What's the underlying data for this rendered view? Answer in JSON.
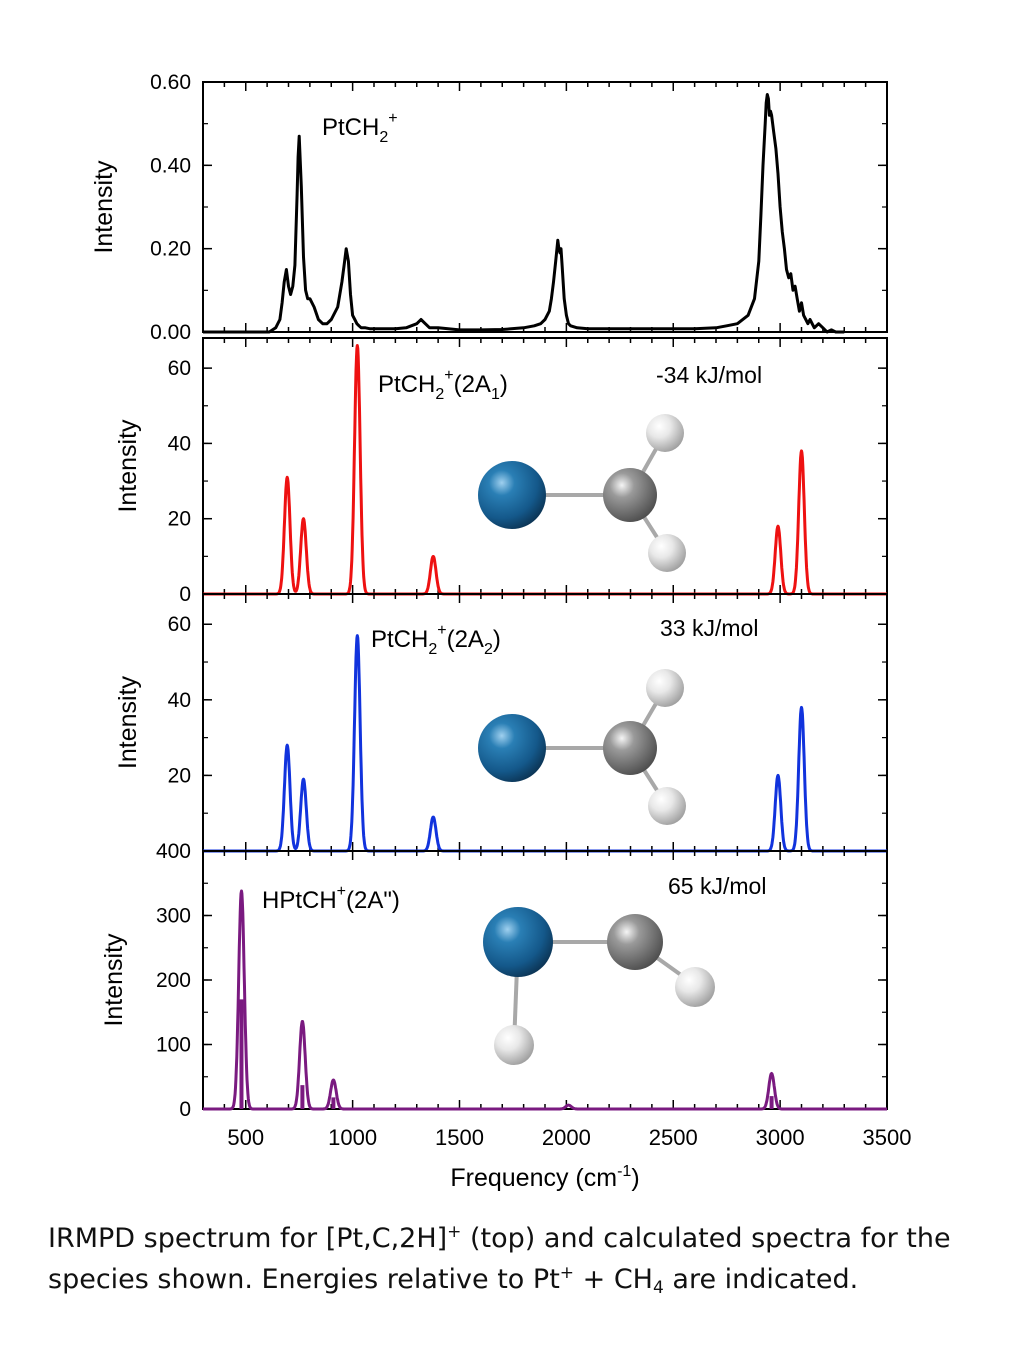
{
  "chart_data": {
    "type": "line",
    "xlabel_base": "Frequency (cm",
    "xlabel_sup": "-1",
    "xlabel_close": ")",
    "xlim": [
      300,
      3500
    ],
    "xticks": [
      "500",
      "1000",
      "1500",
      "2000",
      "2500",
      "3000",
      "3500"
    ],
    "panels": [
      {
        "id": "exp",
        "ylabel": "Intensity",
        "color": "#000000",
        "ylim": [
          0,
          0.6
        ],
        "yticks": [
          "0.00",
          "0.20",
          "0.40",
          "0.60"
        ],
        "label_main": "PtCH",
        "label_sub": "2",
        "label_sup": "+",
        "label_state": "",
        "label_state_sub": "",
        "label_close": "",
        "energy": "",
        "series": {
          "name": "IRMPD spectrum",
          "x": [
            300,
            610,
            640,
            660,
            670,
            680,
            690,
            700,
            710,
            720,
            730,
            740,
            745,
            750,
            760,
            770,
            780,
            790,
            800,
            820,
            840,
            860,
            880,
            900,
            930,
            950,
            960,
            970,
            980,
            990,
            1000,
            1010,
            1020,
            1030,
            1040,
            1060,
            1080,
            1100,
            1150,
            1200,
            1250,
            1300,
            1320,
            1340,
            1360,
            1400,
            1500,
            1600,
            1700,
            1800,
            1850,
            1880,
            1900,
            1920,
            1930,
            1940,
            1950,
            1960,
            1965,
            1970,
            1975,
            1980,
            1990,
            2000,
            2010,
            2020,
            2050,
            2100,
            2200,
            2300,
            2400,
            2500,
            2600,
            2700,
            2750,
            2800,
            2850,
            2880,
            2900,
            2910,
            2920,
            2930,
            2935,
            2940,
            2945,
            2950,
            2955,
            2960,
            2970,
            2980,
            2990,
            3000,
            3010,
            3020,
            3030,
            3040,
            3050,
            3060,
            3070,
            3080,
            3090,
            3100,
            3110,
            3120,
            3130,
            3140,
            3160,
            3180,
            3200,
            3220,
            3240,
            3260,
            3280,
            3300
          ],
          "y": [
            0.0,
            0.0,
            0.01,
            0.03,
            0.07,
            0.12,
            0.15,
            0.11,
            0.09,
            0.11,
            0.16,
            0.33,
            0.42,
            0.47,
            0.35,
            0.18,
            0.1,
            0.08,
            0.08,
            0.06,
            0.03,
            0.02,
            0.02,
            0.03,
            0.06,
            0.12,
            0.16,
            0.2,
            0.17,
            0.09,
            0.04,
            0.03,
            0.02,
            0.015,
            0.01,
            0.01,
            0.008,
            0.008,
            0.008,
            0.008,
            0.01,
            0.02,
            0.03,
            0.02,
            0.01,
            0.01,
            0.005,
            0.005,
            0.006,
            0.01,
            0.015,
            0.02,
            0.03,
            0.05,
            0.08,
            0.12,
            0.17,
            0.22,
            0.2,
            0.19,
            0.2,
            0.16,
            0.08,
            0.04,
            0.02,
            0.015,
            0.01,
            0.008,
            0.008,
            0.008,
            0.008,
            0.008,
            0.008,
            0.01,
            0.015,
            0.02,
            0.04,
            0.08,
            0.17,
            0.28,
            0.4,
            0.5,
            0.55,
            0.57,
            0.56,
            0.52,
            0.53,
            0.52,
            0.48,
            0.44,
            0.38,
            0.3,
            0.24,
            0.2,
            0.15,
            0.13,
            0.14,
            0.1,
            0.11,
            0.08,
            0.05,
            0.07,
            0.04,
            0.03,
            0.02,
            0.03,
            0.01,
            0.02,
            0.01,
            0.0,
            0.005,
            0.0,
            0.0,
            0.0
          ]
        }
      },
      {
        "id": "a1",
        "ylabel": "Intensity",
        "color": "#ee1111",
        "ylim": [
          0,
          68
        ],
        "yticks": [
          "0",
          "20",
          "40",
          "60"
        ],
        "label_main": "PtCH",
        "label_sub": "2",
        "label_sup": "+",
        "label_state": "(2A",
        "label_state_sub": "1",
        "label_close": ")",
        "energy": "-34 kJ/mol",
        "sigma": 13,
        "peaks": [
          {
            "x": 694,
            "y": 31
          },
          {
            "x": 770,
            "y": 20
          },
          {
            "x": 1022,
            "y": 66
          },
          {
            "x": 1377,
            "y": 10
          },
          {
            "x": 2990,
            "y": 18
          },
          {
            "x": 3100,
            "y": 38
          }
        ]
      },
      {
        "id": "a2",
        "ylabel": "Intensity",
        "color": "#1133dd",
        "ylim": [
          0,
          68
        ],
        "yticks": [
          "20",
          "40",
          "60"
        ],
        "label_main": "PtCH",
        "label_sub": "2",
        "label_sup": "+",
        "label_state": "(2A",
        "label_state_sub": "2",
        "label_close": ")",
        "energy": "33 kJ/mol",
        "sigma": 13,
        "peaks": [
          {
            "x": 694,
            "y": 28
          },
          {
            "x": 770,
            "y": 19
          },
          {
            "x": 1022,
            "y": 57
          },
          {
            "x": 1377,
            "y": 9
          },
          {
            "x": 2990,
            "y": 20
          },
          {
            "x": 3100,
            "y": 38
          }
        ]
      },
      {
        "id": "hptch",
        "ylabel": "Intensity",
        "color": "#7a1a80",
        "ylim": [
          0,
          400
        ],
        "yticks": [
          "0",
          "100",
          "200",
          "300",
          "400"
        ],
        "label_main": "HPtCH",
        "label_sub": "",
        "label_sup": "+",
        "label_state": "(2A\")",
        "label_state_sub": "",
        "label_close": "",
        "energy": "65 kJ/mol",
        "sigma": 13,
        "peaks": [
          {
            "x": 480,
            "y": 338
          },
          {
            "x": 765,
            "y": 136
          },
          {
            "x": 910,
            "y": 45
          },
          {
            "x": 2010,
            "y": 6
          },
          {
            "x": 2960,
            "y": 55
          }
        ],
        "sticks": [
          {
            "x": 480,
            "y": 170
          },
          {
            "x": 765,
            "y": 37
          },
          {
            "x": 910,
            "y": 18
          },
          {
            "x": 2960,
            "y": 20
          }
        ]
      }
    ]
  },
  "caption": {
    "part1": "IRMPD spectrum for [Pt,C,2H]",
    "sup1": "+",
    "part2": " (top) and calculated spectra for the species shown.   Energies relative to Pt",
    "sup2": "+",
    "part3": " + CH",
    "sub1": "4",
    "part4": " are indicated."
  }
}
